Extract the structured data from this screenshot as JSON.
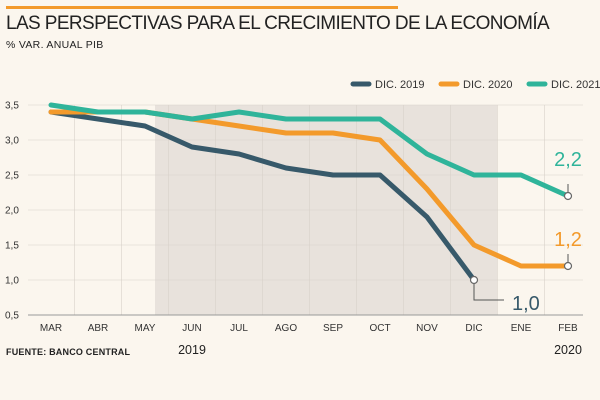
{
  "header": {
    "title": "LAS PERSPECTIVAS PARA EL CRECIMIENTO DE LA ECONOMÍA",
    "subtitle": "% VAR. ANUAL PIB"
  },
  "footer": {
    "source": "FUENTE: BANCO CENTRAL"
  },
  "colors": {
    "background": "#fbf6ee",
    "shade": "#e8e2dc",
    "grid": "#d8d2ca",
    "axis": "#999999",
    "accent": "#f39a2b"
  },
  "chart_data": {
    "type": "line",
    "title": "LAS PERSPECTIVAS PARA EL CRECIMIENTO DE LA ECONOMÍA",
    "ylabel": "% VAR. ANUAL PIB",
    "xlabel": "",
    "categories": [
      "MAR",
      "ABR",
      "MAY",
      "JUN",
      "JUL",
      "AGO",
      "SEP",
      "OCT",
      "NOV",
      "DIC",
      "ENE",
      "FEB"
    ],
    "year_labels": [
      {
        "text": "2019",
        "category": "JUN"
      },
      {
        "text": "2020",
        "category": "FEB"
      }
    ],
    "ylim": [
      0.5,
      3.5
    ],
    "yticks": [
      "0,5",
      "1,0",
      "1,5",
      "2,0",
      "2,5",
      "3,0",
      "3,5"
    ],
    "shaded_range": [
      "MAY",
      "DIC"
    ],
    "legend_position": "top-right",
    "grid": true,
    "series": [
      {
        "name": "DIC. 2019",
        "color": "#37596a",
        "values": [
          3.4,
          3.3,
          3.2,
          2.9,
          2.8,
          2.6,
          2.5,
          2.5,
          1.9,
          1.0,
          null,
          null
        ],
        "end_label": "1,0"
      },
      {
        "name": "DIC. 2020",
        "color": "#f39a2b",
        "values": [
          3.4,
          3.4,
          3.4,
          3.3,
          3.2,
          3.1,
          3.1,
          3.0,
          2.3,
          1.5,
          1.2,
          1.2
        ],
        "end_label": "1,2"
      },
      {
        "name": "DIC. 2021",
        "color": "#2fb49a",
        "values": [
          3.5,
          3.4,
          3.4,
          3.3,
          3.4,
          3.3,
          3.3,
          3.3,
          2.8,
          2.5,
          2.5,
          2.2
        ],
        "end_label": "2,2"
      }
    ]
  }
}
